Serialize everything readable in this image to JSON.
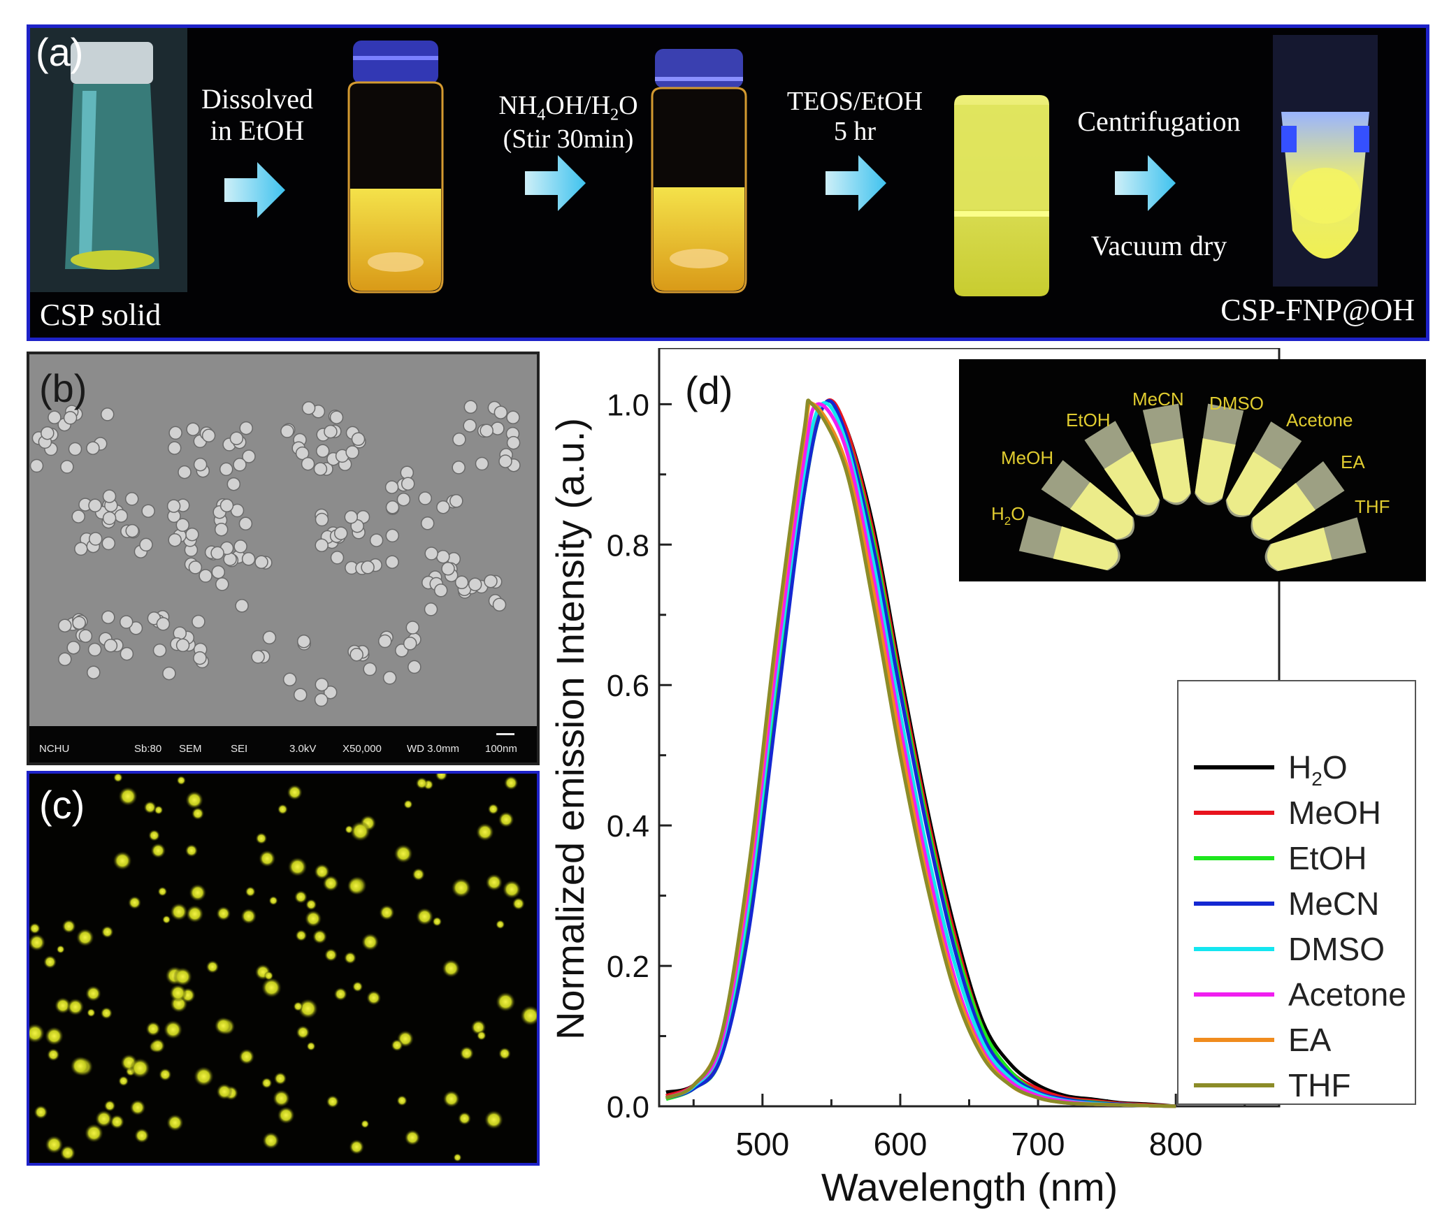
{
  "panel_a": {
    "label": "(a)",
    "start_label": "CSP solid",
    "end_label": "CSP-FNP@OH",
    "steps": [
      {
        "line1": "Dissolved",
        "line2": "in EtOH"
      },
      {
        "line1_pre": "NH",
        "line1_sub1": "4",
        "line1_mid": "OH/H",
        "line1_sub2": "2",
        "line1_post": "O",
        "line2": "(Stir 30min)"
      },
      {
        "line1": "TEOS/EtOH",
        "line2": "5 hr"
      },
      {
        "line1": "Centrifugation",
        "line2": "Vacuum dry"
      }
    ],
    "colors": {
      "arrow": "#5ecdf0",
      "glow": "#e8e640",
      "border": "#1e22c8"
    }
  },
  "panel_b": {
    "label": "(b)",
    "sem_bar": {
      "org": "NCHU",
      "sb": "Sb:80",
      "mode": "SEM",
      "det": "SEI",
      "kv": "3.0kV",
      "mag": "X50,000",
      "wd": "WD 3.0mm",
      "scale": "100nm"
    }
  },
  "panel_c": {
    "label": "(c)"
  },
  "panel_d": {
    "label": "(d)",
    "inset_labels": {
      "h2o_pre": "H",
      "h2o_sub": "2",
      "h2o_post": "O",
      "meoh": "MeOH",
      "etoh": "EtOH",
      "mecn": "MeCN",
      "dmso": "DMSO",
      "acetone": "Acetone",
      "ea": "EA",
      "thf": "THF"
    }
  },
  "chart_data": {
    "type": "line",
    "title": "",
    "xlabel": "Wavelength (nm)",
    "ylabel": "Normalized emission Intensity (a.u.)",
    "xlim": [
      425,
      875
    ],
    "ylim": [
      0,
      1.08
    ],
    "xticks": [
      "500",
      "600",
      "700",
      "800"
    ],
    "yticks": [
      "0.0",
      "0.2",
      "0.4",
      "0.6",
      "0.8",
      "1.0"
    ],
    "legend_position": "right",
    "series": [
      {
        "name": "H2O",
        "name_pre": "H",
        "name_sub": "2",
        "name_post": "O",
        "color": "#000000",
        "x": [
          430,
          450,
          470,
          490,
          510,
          530,
          545,
          560,
          580,
          600,
          620,
          640,
          660,
          680,
          700,
          720,
          740,
          760,
          780,
          800
        ],
        "y": [
          0.02,
          0.03,
          0.08,
          0.27,
          0.58,
          0.88,
          1.0,
          0.97,
          0.83,
          0.62,
          0.42,
          0.25,
          0.12,
          0.06,
          0.03,
          0.015,
          0.01,
          0.005,
          0.003,
          0.0
        ]
      },
      {
        "name": "MeOH",
        "color": "#e8141e",
        "x": [
          430,
          450,
          470,
          490,
          510,
          530,
          545,
          560,
          580,
          600,
          620,
          640,
          660,
          680,
          700,
          720,
          740,
          760,
          780,
          800
        ],
        "y": [
          0.015,
          0.03,
          0.08,
          0.27,
          0.58,
          0.88,
          1.0,
          0.97,
          0.82,
          0.61,
          0.41,
          0.24,
          0.11,
          0.05,
          0.025,
          0.012,
          0.008,
          0.004,
          0.002,
          0.0
        ]
      },
      {
        "name": "EtOH",
        "color": "#1ee61e",
        "x": [
          430,
          450,
          470,
          490,
          510,
          530,
          545,
          560,
          580,
          600,
          620,
          640,
          660,
          680,
          700,
          720,
          740,
          760,
          780,
          800
        ],
        "y": [
          0.01,
          0.025,
          0.07,
          0.26,
          0.57,
          0.87,
          1.0,
          0.96,
          0.81,
          0.6,
          0.4,
          0.23,
          0.11,
          0.05,
          0.02,
          0.01,
          0.006,
          0.003,
          0.001,
          0.0
        ]
      },
      {
        "name": "MeCN",
        "color": "#1428d2",
        "x": [
          430,
          450,
          470,
          490,
          510,
          530,
          545,
          560,
          580,
          600,
          620,
          640,
          660,
          680,
          700,
          720,
          740,
          760,
          780,
          800
        ],
        "y": [
          0.012,
          0.025,
          0.07,
          0.25,
          0.56,
          0.87,
          1.0,
          0.96,
          0.8,
          0.59,
          0.39,
          0.22,
          0.1,
          0.045,
          0.02,
          0.01,
          0.005,
          0.003,
          0.001,
          0.0
        ]
      },
      {
        "name": "DMSO",
        "color": "#14e6f0",
        "x": [
          430,
          450,
          470,
          490,
          510,
          530,
          543,
          560,
          580,
          600,
          620,
          640,
          660,
          680,
          700,
          720,
          740,
          760,
          780,
          800
        ],
        "y": [
          0.012,
          0.028,
          0.085,
          0.29,
          0.61,
          0.9,
          1.0,
          0.95,
          0.78,
          0.56,
          0.36,
          0.2,
          0.09,
          0.04,
          0.018,
          0.008,
          0.004,
          0.002,
          0.001,
          0.0
        ]
      },
      {
        "name": "Acetone",
        "color": "#f01ef0",
        "x": [
          430,
          450,
          470,
          490,
          510,
          530,
          540,
          560,
          580,
          600,
          620,
          640,
          660,
          680,
          700,
          720,
          740,
          760,
          780,
          800
        ],
        "y": [
          0.012,
          0.03,
          0.09,
          0.31,
          0.63,
          0.92,
          1.0,
          0.94,
          0.76,
          0.54,
          0.34,
          0.18,
          0.08,
          0.035,
          0.015,
          0.007,
          0.003,
          0.002,
          0.001,
          0.0
        ]
      },
      {
        "name": "EA",
        "color": "#f08c1e",
        "x": [
          430,
          450,
          470,
          490,
          510,
          530,
          537,
          560,
          580,
          600,
          620,
          640,
          660,
          680,
          700,
          720,
          740,
          760,
          780,
          800
        ],
        "y": [
          0.012,
          0.03,
          0.1,
          0.33,
          0.66,
          0.95,
          1.0,
          0.92,
          0.74,
          0.52,
          0.32,
          0.17,
          0.075,
          0.03,
          0.012,
          0.005,
          0.003,
          0.002,
          0.001,
          0.0
        ]
      },
      {
        "name": "THF",
        "color": "#8c8c28",
        "x": [
          430,
          450,
          470,
          490,
          510,
          530,
          536,
          560,
          580,
          600,
          620,
          640,
          660,
          680,
          700,
          720,
          740,
          760,
          780,
          800
        ],
        "y": [
          0.012,
          0.03,
          0.1,
          0.34,
          0.67,
          0.96,
          1.0,
          0.91,
          0.72,
          0.5,
          0.31,
          0.16,
          0.07,
          0.03,
          0.012,
          0.005,
          0.003,
          0.002,
          0.001,
          0.0
        ]
      }
    ]
  }
}
